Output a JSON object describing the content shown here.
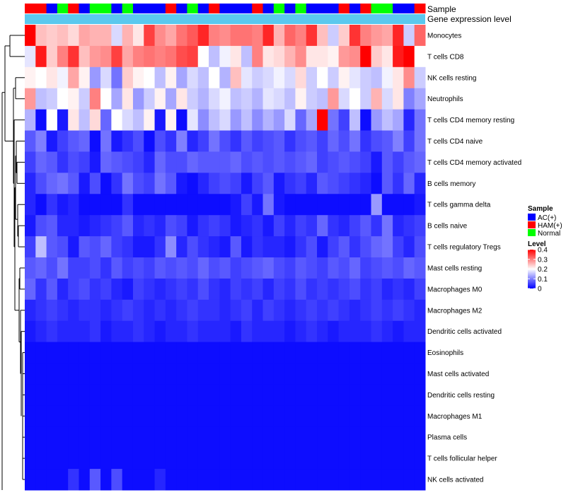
{
  "chart_data": {
    "type": "heatmap",
    "annotation_labels": [
      "Sample",
      "Gene expression level"
    ],
    "sample_groups": [
      "HAM(+)",
      "HAM(+)",
      "AC(+)",
      "Normal",
      "HAM(+)",
      "AC(+)",
      "Normal",
      "Normal",
      "AC(+)",
      "Normal",
      "AC(+)",
      "AC(+)",
      "AC(+)",
      "HAM(+)",
      "AC(+)",
      "Normal",
      "AC(+)",
      "HAM(+)",
      "AC(+)",
      "AC(+)",
      "AC(+)",
      "HAM(+)",
      "AC(+)",
      "Normal",
      "AC(+)",
      "Normal",
      "AC(+)",
      "AC(+)",
      "AC(+)",
      "HAM(+)",
      "AC(+)",
      "HAM(+)",
      "Normal",
      "Normal",
      "AC(+)",
      "AC(+)",
      "HAM(+)"
    ],
    "rows": [
      "Monocytes",
      "T cells CD8",
      "NK cells resting",
      "Neutrophils",
      "T cells CD4 memory resting",
      "T cells CD4 naive",
      "T cells CD4 memory activated",
      "B cells memory",
      "T cells gamma delta",
      "B cells naive",
      "T cells regulatory  Tregs",
      "Mast cells resting",
      "Macrophages M0",
      "Macrophages M2",
      "Dendritic cells activated",
      "Eosinophils",
      "Mast cells activated",
      "Dendritic cells resting",
      "Macrophages M1",
      "Plasma cells",
      "T cells follicular helper",
      "NK cells activated"
    ],
    "values": [
      [
        0.4,
        0.25,
        0.24,
        0.25,
        0.23,
        0.27,
        0.26,
        0.26,
        0.17,
        0.26,
        0.22,
        0.35,
        0.29,
        0.27,
        0.31,
        0.33,
        0.37,
        0.3,
        0.29,
        0.31,
        0.31,
        0.3,
        0.37,
        0.26,
        0.32,
        0.3,
        0.36,
        0.25,
        0.16,
        0.24,
        0.36,
        0.3,
        0.28,
        0.27,
        0.37,
        0.16,
        0.32
      ],
      [
        0.18,
        0.38,
        0.24,
        0.3,
        0.36,
        0.25,
        0.28,
        0.29,
        0.35,
        0.27,
        0.3,
        0.31,
        0.3,
        0.31,
        0.34,
        0.35,
        0.2,
        0.15,
        0.19,
        0.22,
        0.15,
        0.3,
        0.22,
        0.23,
        0.26,
        0.29,
        0.22,
        0.22,
        0.21,
        0.28,
        0.29,
        0.4,
        0.24,
        0.22,
        0.38,
        0.4,
        0.2
      ],
      [
        0.21,
        0.2,
        0.22,
        0.19,
        0.27,
        0.21,
        0.12,
        0.17,
        0.09,
        0.24,
        0.21,
        0.2,
        0.15,
        0.21,
        0.13,
        0.17,
        0.15,
        0.2,
        0.14,
        0.25,
        0.18,
        0.16,
        0.17,
        0.19,
        0.17,
        0.23,
        0.16,
        0.2,
        0.16,
        0.21,
        0.18,
        0.16,
        0.15,
        0.19,
        0.22,
        0.29,
        0.16
      ],
      [
        0.28,
        0.15,
        0.16,
        0.2,
        0.21,
        0.16,
        0.3,
        0.2,
        0.13,
        0.22,
        0.12,
        0.16,
        0.21,
        0.13,
        0.22,
        0.16,
        0.14,
        0.17,
        0.19,
        0.15,
        0.16,
        0.14,
        0.18,
        0.17,
        0.15,
        0.21,
        0.16,
        0.15,
        0.28,
        0.17,
        0.2,
        0.16,
        0.26,
        0.17,
        0.22,
        0.1,
        0.13
      ],
      [
        0.14,
        0.01,
        0.2,
        0.02,
        0.22,
        0.15,
        0.23,
        0.08,
        0.2,
        0.17,
        0.15,
        0.21,
        0.02,
        0.21,
        0.01,
        0.18,
        0.11,
        0.15,
        0.17,
        0.12,
        0.15,
        0.11,
        0.14,
        0.12,
        0.17,
        0.08,
        0.13,
        0.4,
        0.09,
        0.05,
        0.15,
        0.01,
        0.12,
        0.15,
        0.13,
        0.03,
        0.09
      ],
      [
        0.07,
        0.1,
        0.02,
        0.05,
        0.07,
        0.08,
        0.01,
        0.09,
        0.02,
        0.04,
        0.06,
        0.01,
        0.06,
        0.04,
        0.1,
        0.03,
        0.05,
        0.09,
        0.06,
        0.04,
        0.07,
        0.05,
        0.06,
        0.07,
        0.04,
        0.06,
        0.07,
        0.05,
        0.08,
        0.06,
        0.09,
        0.04,
        0.06,
        0.07,
        0.1,
        0.05,
        0.09
      ],
      [
        0.05,
        0.08,
        0.07,
        0.04,
        0.06,
        0.05,
        0.02,
        0.08,
        0.07,
        0.06,
        0.05,
        0.03,
        0.08,
        0.06,
        0.06,
        0.08,
        0.07,
        0.07,
        0.07,
        0.08,
        0.06,
        0.07,
        0.06,
        0.07,
        0.06,
        0.07,
        0.08,
        0.05,
        0.06,
        0.07,
        0.06,
        0.05,
        0.02,
        0.07,
        0.05,
        0.07,
        0.08
      ],
      [
        0.03,
        0.06,
        0.08,
        0.09,
        0.07,
        0.02,
        0.06,
        0.01,
        0.04,
        0.09,
        0.06,
        0.05,
        0.09,
        0.07,
        0.02,
        0.01,
        0.03,
        0.05,
        0.06,
        0.05,
        0.02,
        0.05,
        0.07,
        0.02,
        0.04,
        0.05,
        0.03,
        0.07,
        0.06,
        0.05,
        0.04,
        0.03,
        0.01,
        0.07,
        0.04,
        0.08,
        0.03
      ],
      [
        0.03,
        0.01,
        0.04,
        0.02,
        0.03,
        0.01,
        0.01,
        0.01,
        0.01,
        0.04,
        0.01,
        0.01,
        0.01,
        0.01,
        0.01,
        0.01,
        0.01,
        0.01,
        0.01,
        0.02,
        0.05,
        0.02,
        0.09,
        0.02,
        0.01,
        0.01,
        0.01,
        0.01,
        0.01,
        0.01,
        0.01,
        0.01,
        0.12,
        0.01,
        0.01,
        0.01,
        0.02
      ],
      [
        0.02,
        0.06,
        0.07,
        0.03,
        0.03,
        0.02,
        0.03,
        0.04,
        0.05,
        0.07,
        0.03,
        0.04,
        0.03,
        0.06,
        0.05,
        0.02,
        0.04,
        0.05,
        0.04,
        0.02,
        0.03,
        0.04,
        0.02,
        0.05,
        0.03,
        0.05,
        0.04,
        0.08,
        0.04,
        0.03,
        0.05,
        0.07,
        0.04,
        0.09,
        0.03,
        0.04,
        0.05
      ],
      [
        0.05,
        0.15,
        0.07,
        0.06,
        0.02,
        0.07,
        0.06,
        0.08,
        0.05,
        0.04,
        0.02,
        0.02,
        0.04,
        0.11,
        0.03,
        0.06,
        0.04,
        0.03,
        0.02,
        0.07,
        0.02,
        0.04,
        0.03,
        0.03,
        0.02,
        0.04,
        0.06,
        0.02,
        0.05,
        0.07,
        0.04,
        0.06,
        0.08,
        0.09,
        0.05,
        0.03,
        0.06
      ],
      [
        0.07,
        0.08,
        0.06,
        0.09,
        0.05,
        0.05,
        0.06,
        0.04,
        0.07,
        0.05,
        0.06,
        0.05,
        0.07,
        0.06,
        0.07,
        0.06,
        0.08,
        0.06,
        0.07,
        0.05,
        0.06,
        0.07,
        0.08,
        0.06,
        0.05,
        0.07,
        0.06,
        0.05,
        0.07,
        0.06,
        0.08,
        0.05,
        0.06,
        0.07,
        0.06,
        0.08,
        0.07
      ],
      [
        0.08,
        0.04,
        0.07,
        0.03,
        0.05,
        0.06,
        0.04,
        0.05,
        0.03,
        0.02,
        0.05,
        0.04,
        0.03,
        0.04,
        0.05,
        0.04,
        0.06,
        0.04,
        0.03,
        0.05,
        0.04,
        0.05,
        0.03,
        0.05,
        0.04,
        0.06,
        0.04,
        0.05,
        0.04,
        0.05,
        0.06,
        0.04,
        0.05,
        0.03,
        0.04,
        0.03,
        0.05
      ],
      [
        0.03,
        0.04,
        0.05,
        0.04,
        0.03,
        0.04,
        0.04,
        0.03,
        0.04,
        0.05,
        0.04,
        0.03,
        0.04,
        0.03,
        0.04,
        0.05,
        0.04,
        0.04,
        0.03,
        0.04,
        0.05,
        0.03,
        0.05,
        0.04,
        0.03,
        0.04,
        0.05,
        0.04,
        0.05,
        0.04,
        0.03,
        0.04,
        0.05,
        0.04,
        0.05,
        0.04,
        0.03
      ],
      [
        0.02,
        0.03,
        0.04,
        0.03,
        0.03,
        0.03,
        0.04,
        0.02,
        0.03,
        0.03,
        0.04,
        0.03,
        0.02,
        0.03,
        0.03,
        0.04,
        0.03,
        0.03,
        0.03,
        0.02,
        0.04,
        0.03,
        0.03,
        0.03,
        0.02,
        0.03,
        0.04,
        0.03,
        0.02,
        0.03,
        0.03,
        0.03,
        0.04,
        0.03,
        0.02,
        0.03,
        0.03
      ],
      [
        0.01,
        0.01,
        0.01,
        0.01,
        0.01,
        0.01,
        0.01,
        0.01,
        0.01,
        0.01,
        0.01,
        0.01,
        0.01,
        0.01,
        0.01,
        0.01,
        0.01,
        0.01,
        0.01,
        0.01,
        0.01,
        0.01,
        0.01,
        0.01,
        0.01,
        0.01,
        0.01,
        0.01,
        0.01,
        0.01,
        0.01,
        0.01,
        0.01,
        0.01,
        0.01,
        0.01,
        0.01
      ],
      [
        0.01,
        0.01,
        0.01,
        0.01,
        0.01,
        0.01,
        0.01,
        0.01,
        0.01,
        0.01,
        0.01,
        0.01,
        0.01,
        0.01,
        0.01,
        0.01,
        0.01,
        0.01,
        0.01,
        0.01,
        0.01,
        0.01,
        0.01,
        0.01,
        0.01,
        0.01,
        0.01,
        0.01,
        0.01,
        0.01,
        0.01,
        0.01,
        0.01,
        0.01,
        0.01,
        0.01,
        0.01
      ],
      [
        0.01,
        0.01,
        0.01,
        0.01,
        0.01,
        0.01,
        0.01,
        0.01,
        0.01,
        0.01,
        0.01,
        0.01,
        0.01,
        0.01,
        0.01,
        0.01,
        0.01,
        0.01,
        0.01,
        0.01,
        0.01,
        0.01,
        0.01,
        0.01,
        0.01,
        0.01,
        0.01,
        0.01,
        0.01,
        0.01,
        0.01,
        0.01,
        0.01,
        0.01,
        0.01,
        0.01,
        0.01
      ],
      [
        0.01,
        0.01,
        0.01,
        0.01,
        0.01,
        0.01,
        0.01,
        0.01,
        0.01,
        0.01,
        0.01,
        0.01,
        0.01,
        0.01,
        0.01,
        0.01,
        0.01,
        0.01,
        0.01,
        0.01,
        0.01,
        0.01,
        0.01,
        0.01,
        0.01,
        0.01,
        0.01,
        0.01,
        0.01,
        0.01,
        0.01,
        0.01,
        0.01,
        0.01,
        0.01,
        0.01,
        0.01
      ],
      [
        0.01,
        0.01,
        0.01,
        0.01,
        0.01,
        0.01,
        0.01,
        0.01,
        0.01,
        0.01,
        0.01,
        0.01,
        0.01,
        0.01,
        0.01,
        0.01,
        0.01,
        0.01,
        0.01,
        0.01,
        0.01,
        0.01,
        0.01,
        0.01,
        0.01,
        0.01,
        0.01,
        0.01,
        0.01,
        0.01,
        0.01,
        0.01,
        0.01,
        0.01,
        0.01,
        0.01,
        0.01
      ],
      [
        0.01,
        0.01,
        0.01,
        0.01,
        0.01,
        0.01,
        0.01,
        0.01,
        0.01,
        0.01,
        0.01,
        0.01,
        0.01,
        0.01,
        0.01,
        0.01,
        0.01,
        0.01,
        0.01,
        0.01,
        0.01,
        0.01,
        0.01,
        0.01,
        0.01,
        0.01,
        0.01,
        0.01,
        0.01,
        0.01,
        0.01,
        0.01,
        0.01,
        0.01,
        0.01,
        0.01,
        0.01
      ],
      [
        0.01,
        0.01,
        0.01,
        0.01,
        0.04,
        0.01,
        0.07,
        0.01,
        0.06,
        0.01,
        0.01,
        0.01,
        0.03,
        0.01,
        0.01,
        0.01,
        0.01,
        0.01,
        0.01,
        0.01,
        0.01,
        0.01,
        0.01,
        0.01,
        0.01,
        0.01,
        0.01,
        0.01,
        0.01,
        0.01,
        0.01,
        0.01,
        0.01,
        0.01,
        0.01,
        0.01,
        0.01
      ]
    ],
    "legend_sample": {
      "title": "Sample",
      "entries": [
        {
          "label": "AC(+)",
          "color": "#0000ff"
        },
        {
          "label": "HAM(+)",
          "color": "#ff0000"
        },
        {
          "label": "Normal",
          "color": "#00ff00"
        }
      ]
    },
    "legend_level": {
      "title": "Level",
      "ticks": [
        "0.4",
        "0.3",
        "0.2",
        "0.1",
        "0"
      ],
      "range": [
        0,
        0.4
      ],
      "colors": [
        "#0000ff",
        "#ffffff",
        "#ff0000"
      ]
    },
    "expression_bar_color": "#5bc8ee"
  }
}
